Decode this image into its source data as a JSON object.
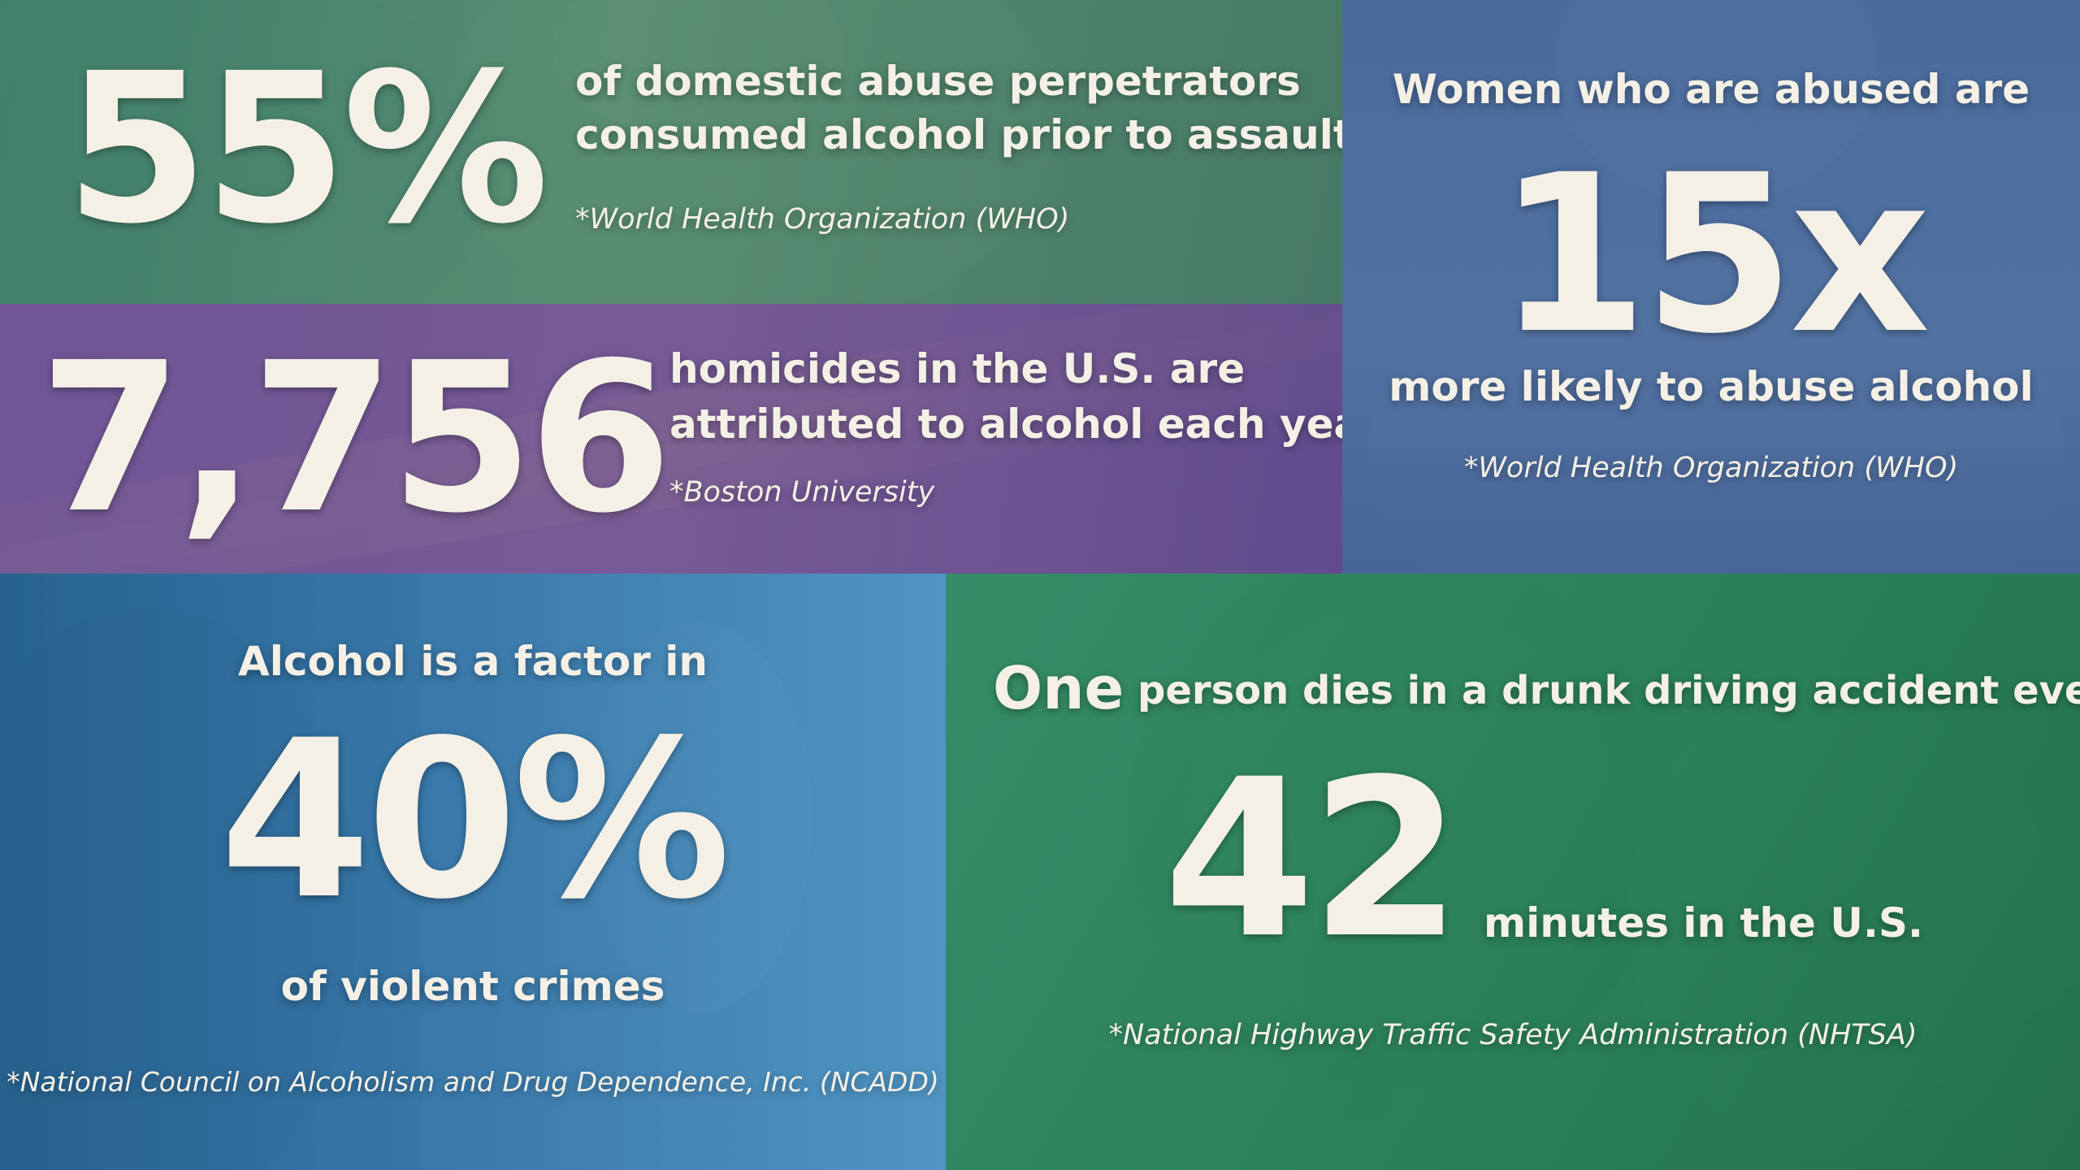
{
  "colors": {
    "text": "#f4f0e6",
    "green_teal": "#40806a",
    "purple": "#70569a",
    "slate_blue": "#486a9c",
    "steel_blue": "#3878aa",
    "green": "#2f8a60"
  },
  "stats": {
    "domestic": {
      "figure": "55%",
      "line1": "of domestic abuse perpetrators",
      "line2": "consumed alcohol prior to assault",
      "source": "*World Health Organization (WHO)"
    },
    "homicides": {
      "figure": "7,756",
      "line1": "homicides in the U.S. are",
      "line2": "attributed to alcohol each year",
      "source": "*Boston University"
    },
    "women": {
      "lead": "Women who are abused are",
      "figure": "15x",
      "tail": "more likely to abuse alcohol",
      "source": "*World Health Organization (WHO)"
    },
    "violent": {
      "lead": "Alcohol is a factor in",
      "figure": "40%",
      "tail": "of violent crimes",
      "source": "*National Council on Alcoholism and Drug Dependence, Inc. (NCADD)"
    },
    "driving": {
      "lead_word": "One",
      "lead_rest": "person dies in a drunk driving accident every",
      "figure": "42",
      "tail": "minutes in the U.S.",
      "source": "*National Highway Traffic Safety Administration (NHTSA)"
    }
  }
}
